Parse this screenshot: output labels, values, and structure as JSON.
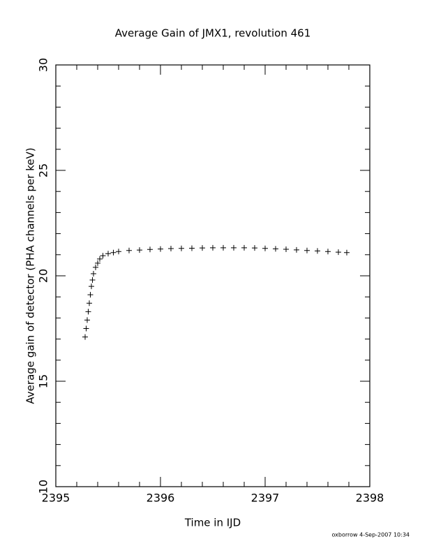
{
  "chart_data": {
    "type": "scatter",
    "title": "Average Gain of JMX1, revolution 461",
    "x_label": "Time in IJD",
    "y_label": "Average gain of detector (PHA channels per keV)",
    "footer": "oxborrow  4-Sep-2007 10:34",
    "marker": "plus",
    "color": "#000000",
    "x": [
      2395.28,
      2395.29,
      2395.3,
      2395.31,
      2395.32,
      2395.33,
      2395.34,
      2395.35,
      2395.36,
      2395.38,
      2395.4,
      2395.42,
      2395.45,
      2395.5,
      2395.55,
      2395.6,
      2395.7,
      2395.8,
      2395.9,
      2396.0,
      2396.1,
      2396.2,
      2396.3,
      2396.4,
      2396.5,
      2396.6,
      2396.7,
      2396.8,
      2396.9,
      2397.0,
      2397.1,
      2397.2,
      2397.3,
      2397.4,
      2397.5,
      2397.6,
      2397.7,
      2397.78
    ],
    "values": [
      17.1,
      17.5,
      17.9,
      18.3,
      18.7,
      19.1,
      19.5,
      19.8,
      20.1,
      20.4,
      20.6,
      20.8,
      20.95,
      21.05,
      21.1,
      21.15,
      21.2,
      21.22,
      21.25,
      21.27,
      21.29,
      21.3,
      21.31,
      21.32,
      21.33,
      21.33,
      21.33,
      21.33,
      21.32,
      21.3,
      21.28,
      21.26,
      21.23,
      21.2,
      21.18,
      21.15,
      21.12,
      21.1
    ],
    "xlim": [
      2395,
      2398
    ],
    "xticks": [
      2395,
      2396,
      2397,
      2398
    ],
    "x_minor_ticks": [
      2395.2,
      2395.4,
      2395.6,
      2395.8,
      2396.2,
      2396.4,
      2396.6,
      2396.8,
      2397.2,
      2397.4,
      2397.6,
      2397.8
    ],
    "ylim": [
      10,
      30
    ],
    "yticks": [
      10,
      15,
      20,
      25,
      30
    ],
    "y_minor_ticks": [
      11,
      12,
      13,
      14,
      16,
      17,
      18,
      19,
      21,
      22,
      23,
      24,
      26,
      27,
      28,
      29
    ]
  }
}
